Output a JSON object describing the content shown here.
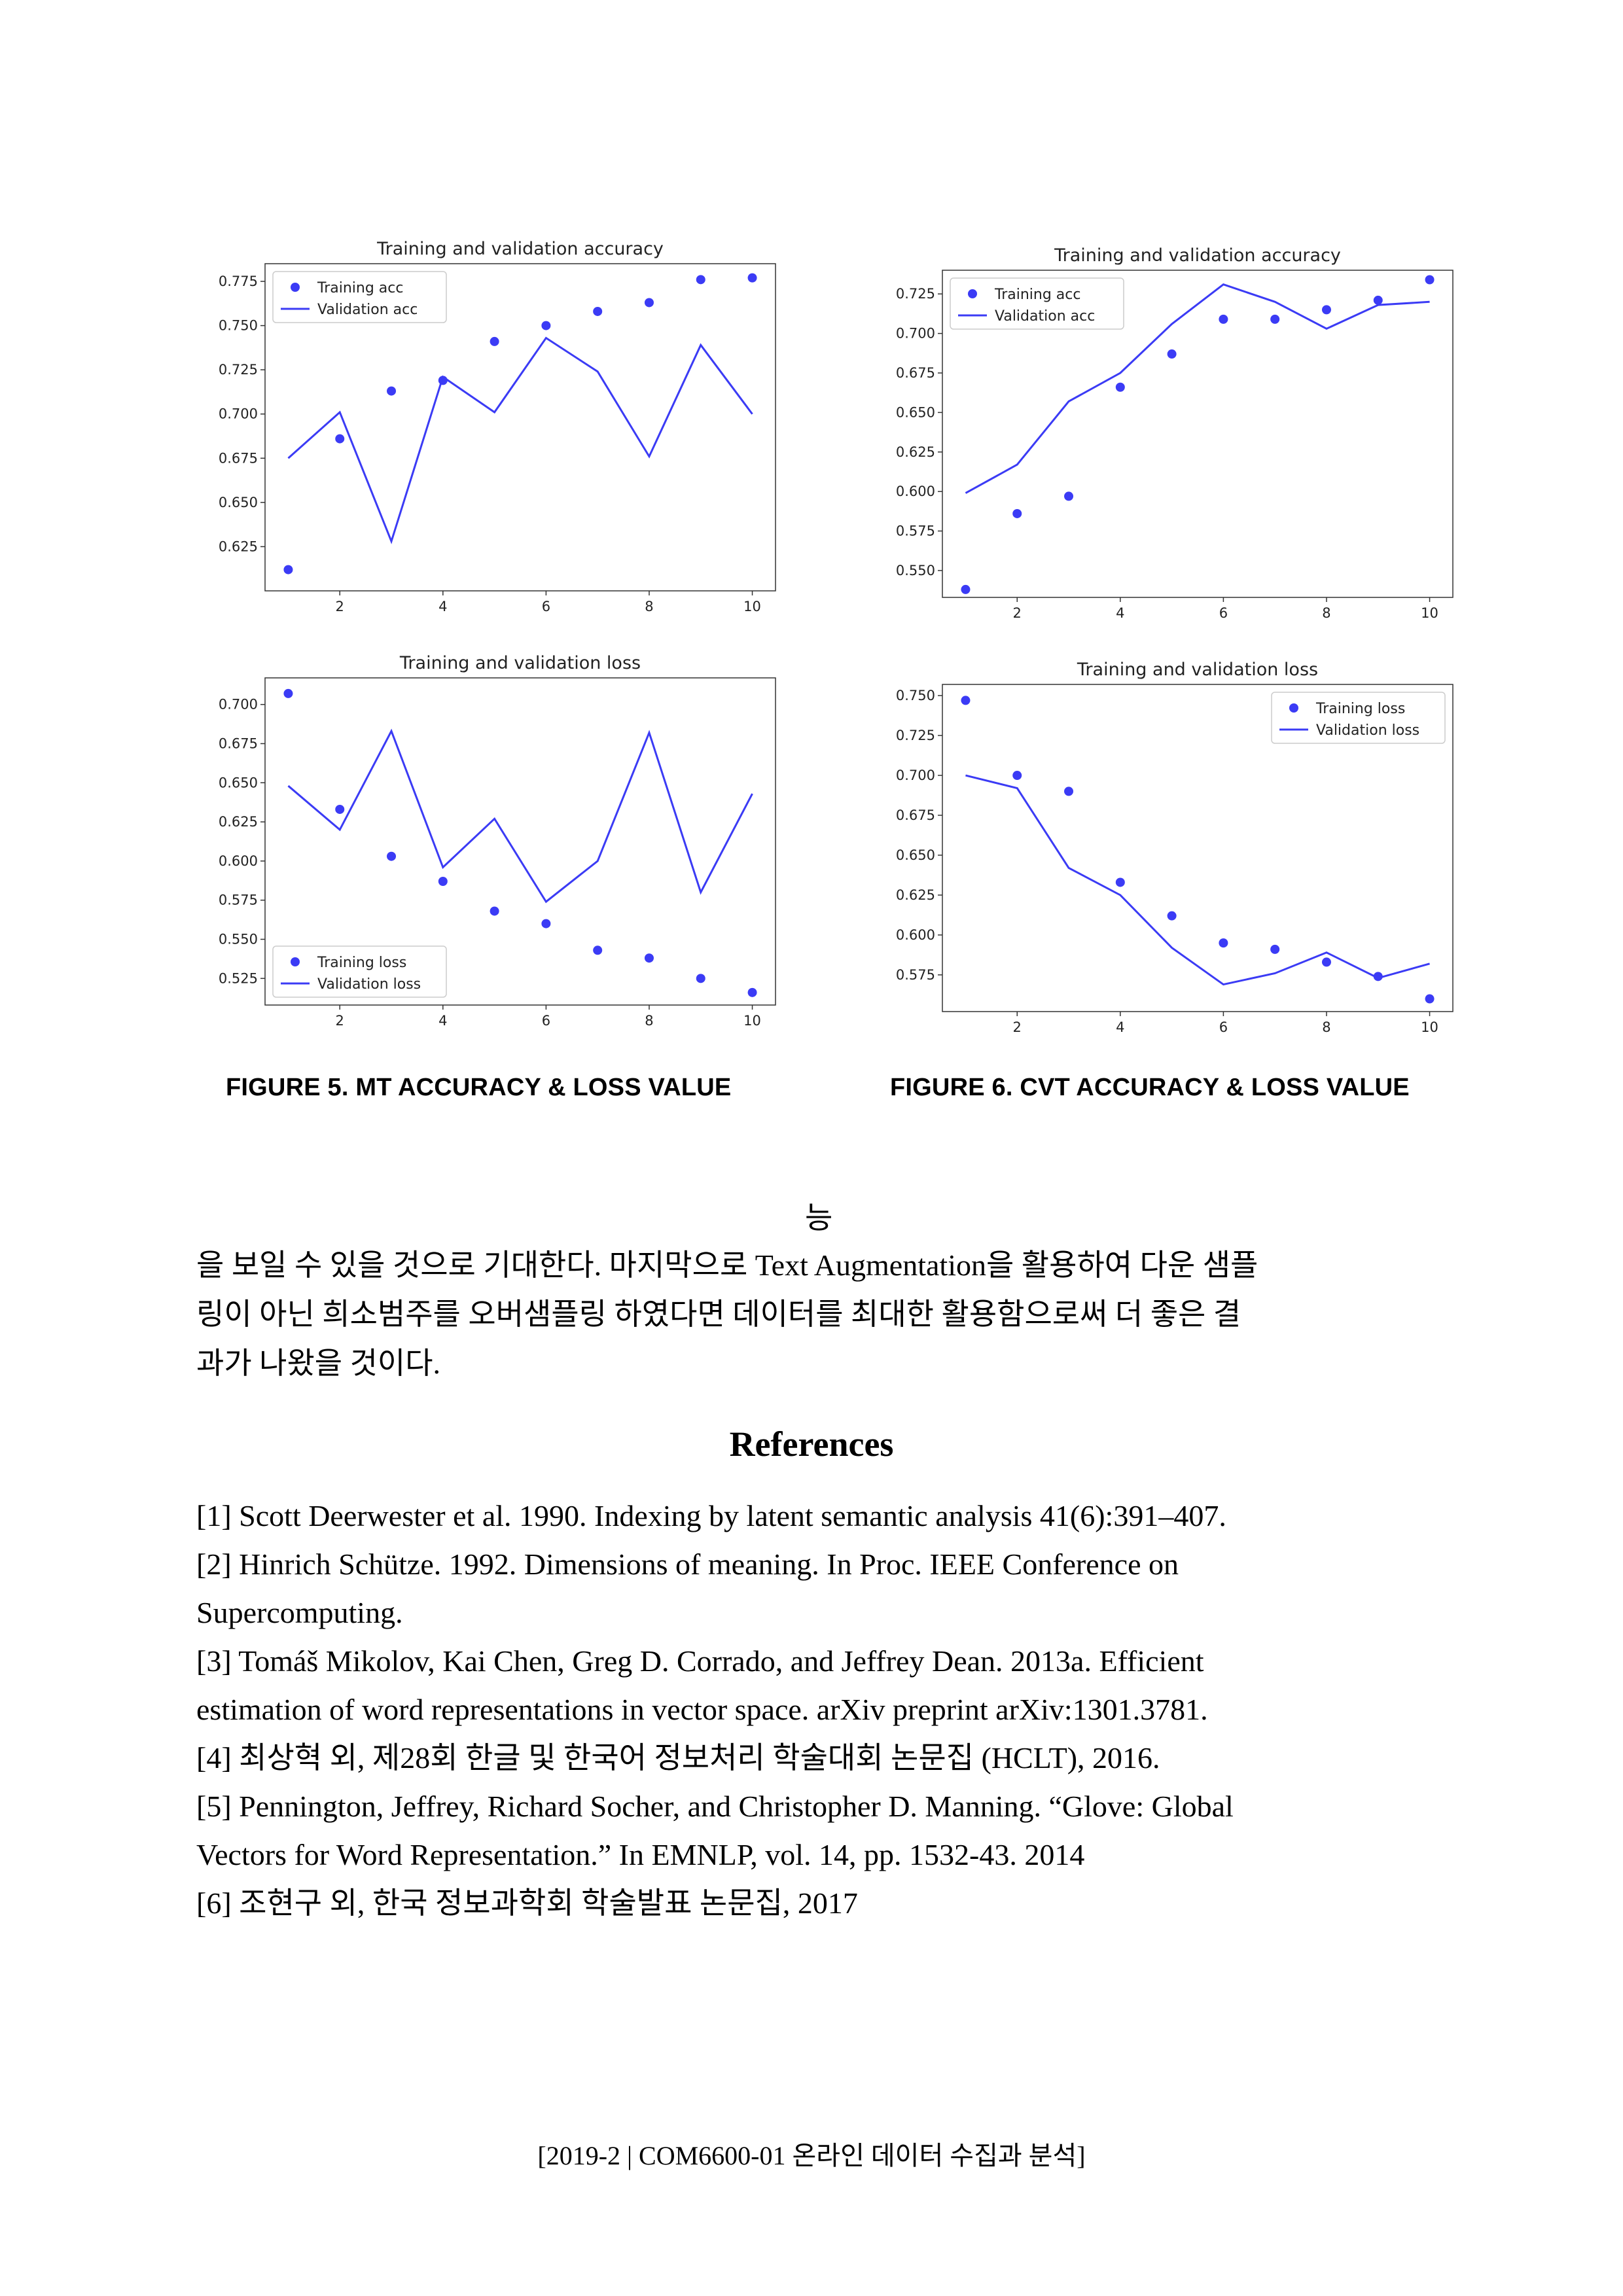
{
  "charts": [
    {
      "id": "mt-acc",
      "chart_data": {
        "type": "scatter",
        "title": "Training and validation accuracy",
        "x": [
          1,
          2,
          3,
          4,
          5,
          6,
          7,
          8,
          9,
          10
        ],
        "series": [
          {
            "name": "Training acc",
            "style": "dots",
            "values": [
              0.612,
              0.686,
              0.713,
              0.719,
              0.741,
              0.75,
              0.758,
              0.763,
              0.776,
              0.777
            ]
          },
          {
            "name": "Validation acc",
            "style": "line",
            "values": [
              0.675,
              0.701,
              0.628,
              0.721,
              0.701,
              0.743,
              0.724,
              0.676,
              0.739,
              0.7
            ]
          }
        ],
        "xlim": [
          0.55,
          10.45
        ],
        "ylim": [
          0.6,
          0.785
        ],
        "xticks": [
          2,
          4,
          6,
          8,
          10
        ],
        "yticks": [
          "0.625",
          "0.650",
          "0.675",
          "0.700",
          "0.725",
          "0.750",
          "0.775"
        ],
        "legend": "top-left"
      }
    },
    {
      "id": "cvt-acc",
      "chart_data": {
        "type": "scatter",
        "title": "Training and validation accuracy",
        "x": [
          1,
          2,
          3,
          4,
          5,
          6,
          7,
          8,
          9,
          10
        ],
        "series": [
          {
            "name": "Training acc",
            "style": "dots",
            "values": [
              0.538,
              0.586,
              0.597,
              0.666,
              0.687,
              0.709,
              0.709,
              0.715,
              0.721,
              0.734
            ]
          },
          {
            "name": "Validation acc",
            "style": "line",
            "values": [
              0.599,
              0.617,
              0.657,
              0.675,
              0.706,
              0.731,
              0.72,
              0.703,
              0.718,
              0.72
            ]
          }
        ],
        "xlim": [
          0.55,
          10.45
        ],
        "ylim": [
          0.533,
          0.74
        ],
        "xticks": [
          2,
          4,
          6,
          8,
          10
        ],
        "yticks": [
          "0.550",
          "0.575",
          "0.600",
          "0.625",
          "0.650",
          "0.675",
          "0.700",
          "0.725"
        ],
        "legend": "top-left"
      }
    },
    {
      "id": "mt-loss",
      "chart_data": {
        "type": "scatter",
        "title": "Training and validation loss",
        "x": [
          1,
          2,
          3,
          4,
          5,
          6,
          7,
          8,
          9,
          10
        ],
        "series": [
          {
            "name": "Training loss",
            "style": "dots",
            "values": [
              0.707,
              0.633,
              0.603,
              0.587,
              0.568,
              0.56,
              0.543,
              0.538,
              0.525,
              0.516
            ]
          },
          {
            "name": "Validation loss",
            "style": "line",
            "values": [
              0.648,
              0.62,
              0.683,
              0.596,
              0.627,
              0.574,
              0.6,
              0.682,
              0.58,
              0.643
            ]
          }
        ],
        "xlim": [
          0.55,
          10.45
        ],
        "ylim": [
          0.508,
          0.717
        ],
        "xticks": [
          2,
          4,
          6,
          8,
          10
        ],
        "yticks": [
          "0.525",
          "0.550",
          "0.575",
          "0.600",
          "0.625",
          "0.650",
          "0.675",
          "0.700"
        ],
        "legend": "bottom-left"
      }
    },
    {
      "id": "cvt-loss",
      "chart_data": {
        "type": "scatter",
        "title": "Training and validation loss",
        "x": [
          1,
          2,
          3,
          4,
          5,
          6,
          7,
          8,
          9,
          10
        ],
        "series": [
          {
            "name": "Training loss",
            "style": "dots",
            "values": [
              0.747,
              0.7,
              0.69,
              0.633,
              0.612,
              0.595,
              0.591,
              0.583,
              0.574,
              0.56
            ]
          },
          {
            "name": "Validation loss",
            "style": "line",
            "values": [
              0.7,
              0.692,
              0.642,
              0.625,
              0.592,
              0.569,
              0.576,
              0.589,
              0.573,
              0.582
            ]
          }
        ],
        "xlim": [
          0.55,
          10.45
        ],
        "ylim": [
          0.552,
          0.757
        ],
        "xticks": [
          2,
          4,
          6,
          8,
          10
        ],
        "yticks": [
          "0.575",
          "0.600",
          "0.625",
          "0.650",
          "0.675",
          "0.700",
          "0.725",
          "0.750"
        ],
        "legend": "top-right"
      }
    }
  ],
  "colors": {
    "series": "#3b3bf5",
    "axis": "#333333",
    "text": "#000000"
  },
  "captions": {
    "fig5": "FIGURE 5. MT ACCURACY & LOSS VALUE",
    "fig6": "FIGURE 6. CVT ACCURACY & LOSS VALUE"
  },
  "body": {
    "fragment": "능",
    "lines": [
      "을 보일 수 있을 것으로 기대한다. 마지막으로 Text Augmentation을 활용하여 다운 샘플",
      "링이 아닌 희소범주를 오버샘플링 하였다면 데이터를 최대한 활용함으로써 더 좋은 결",
      "과가 나왔을 것이다."
    ]
  },
  "references": {
    "heading": "References",
    "lines": [
      "[1] Scott Deerwester et al. 1990. Indexing by latent semantic analysis 41(6):391–407.",
      "[2] Hinrich Schütze. 1992. Dimensions of meaning. In Proc. IEEE Conference on",
      "Supercomputing.",
      "[3] Tomáš Mikolov, Kai Chen, Greg D. Corrado, and Jeffrey Dean. 2013a. Efficient",
      "estimation of word representations in vector space. arXiv preprint arXiv:1301.3781.",
      "[4] 최상혁 외, 제28회 한글 및 한국어 정보처리 학술대회 논문집 (HCLT), 2016.",
      "[5] Pennington, Jeffrey, Richard Socher, and Christopher D. Manning. “Glove: Global",
      "Vectors for Word Representation.” In EMNLP, vol. 14, pp. 1532-43. 2014",
      "[6] 조현구 외, 한국 정보과학회 학술발표 논문집, 2017"
    ]
  },
  "footer": "[2019-2 | COM6600-01 온라인 데이터 수집과 분석]"
}
